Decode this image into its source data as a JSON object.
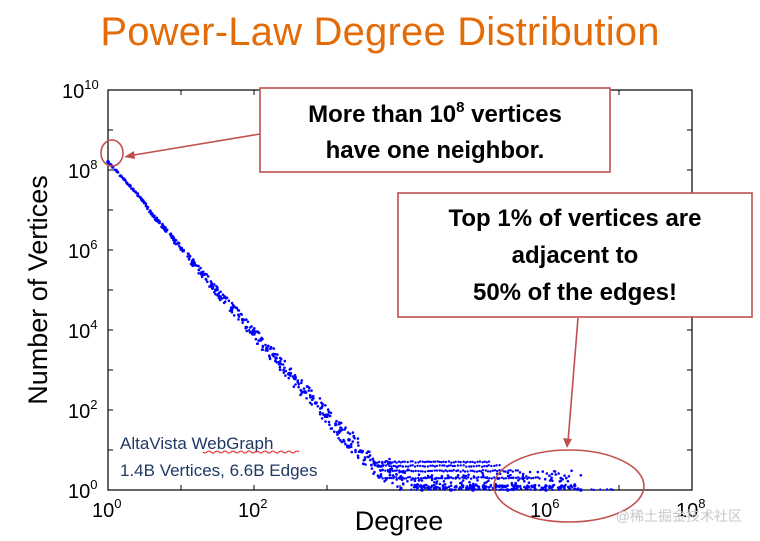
{
  "title": "Power-Law Degree Distribution",
  "colors": {
    "title": "#e36c09",
    "points": "#0000ff",
    "callout_border": "#c0504d",
    "annotation_line": "#c0504d",
    "dataset_text": "#1f3864"
  },
  "chart_data": {
    "type": "scatter",
    "title": "Power-Law Degree Distribution",
    "xlabel": "Degree",
    "ylabel": "Number of Vertices",
    "x_scale": "log",
    "y_scale": "log",
    "xlim": [
      1,
      100000000
    ],
    "ylim": [
      1,
      10000000000
    ],
    "x_ticks": [
      {
        "base": "10",
        "exp": "0",
        "value": 1
      },
      {
        "base": "10",
        "exp": "2",
        "value": 100
      },
      {
        "base": "10",
        "exp": "6",
        "value": 1000000
      },
      {
        "base": "10",
        "exp": "8",
        "value": 100000000
      }
    ],
    "y_ticks": [
      {
        "base": "10",
        "exp": "0",
        "value": 1
      },
      {
        "base": "10",
        "exp": "2",
        "value": 100
      },
      {
        "base": "10",
        "exp": "4",
        "value": 10000
      },
      {
        "base": "10",
        "exp": "6",
        "value": 1000000
      },
      {
        "base": "10",
        "exp": "8",
        "value": 100000000
      },
      {
        "base": "10",
        "exp": "10",
        "value": 10000000000
      }
    ],
    "grid": false,
    "series": [
      {
        "points": [
          [
            1,
            160000000
          ],
          [
            2,
            40000000
          ],
          [
            3,
            17000000
          ],
          [
            4,
            8000000
          ],
          [
            5,
            5000000
          ],
          [
            6,
            3300000
          ],
          [
            8,
            1800000
          ],
          [
            10,
            1100000
          ],
          [
            15,
            450000
          ],
          [
            20,
            250000
          ],
          [
            30,
            100000
          ],
          [
            50,
            35000
          ],
          [
            70,
            18000
          ],
          [
            100,
            8000
          ],
          [
            150,
            3500
          ],
          [
            200,
            2000
          ],
          [
            300,
            800
          ],
          [
            500,
            280
          ],
          [
            700,
            150
          ],
          [
            1000,
            70
          ],
          [
            1500,
            30
          ],
          [
            2000,
            18
          ],
          [
            3000,
            9
          ],
          [
            5000,
            4
          ],
          [
            7000,
            3
          ],
          [
            10000,
            2
          ],
          [
            20000,
            1
          ],
          [
            50000,
            1
          ],
          [
            100000,
            1
          ],
          [
            300000,
            1
          ],
          [
            1000000,
            1
          ],
          [
            3000000,
            1
          ]
        ]
      }
    ],
    "annotations": [
      {
        "lines": [
          "More than 10^8 vertices",
          "have one neighbor."
        ]
      },
      {
        "lines": [
          "Top 1% of vertices are",
          "adjacent to",
          "50% of the edges!"
        ]
      }
    ]
  },
  "callout1": {
    "line1_pre": "More than 10",
    "line1_sup": "8",
    "line1_post": " vertices",
    "line2": "have one neighbor."
  },
  "callout2": {
    "line1": "Top 1% of vertices are",
    "line2": "adjacent to",
    "line3": "50% of the edges!"
  },
  "dataset": {
    "line1": "AltaVista WebGraph",
    "line2": "1.4B Vertices, 6.6B Edges"
  },
  "watermark": "@稀土掘金技术社区"
}
